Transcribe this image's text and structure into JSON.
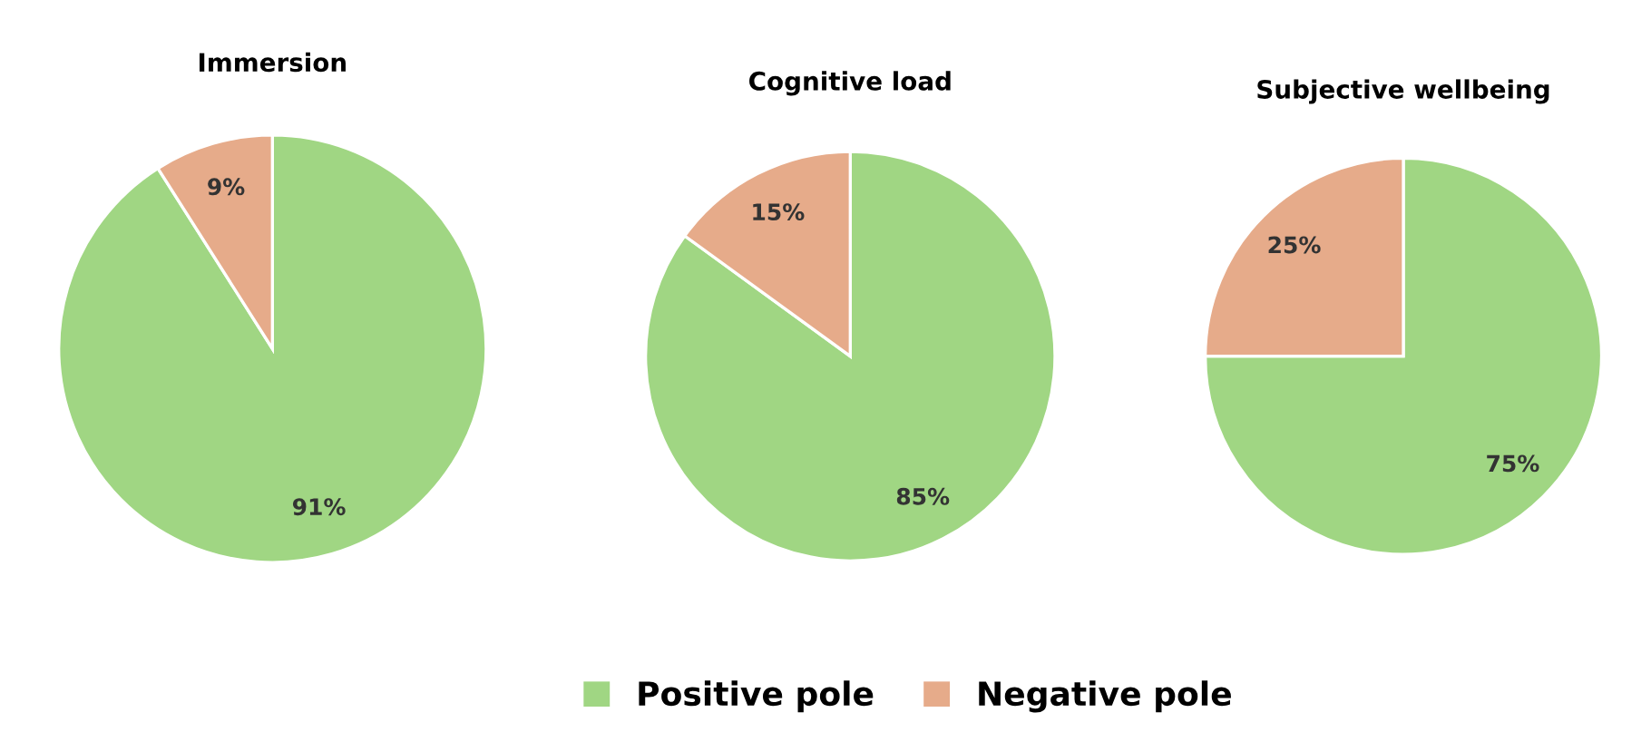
{
  "chart_data": [
    {
      "type": "pie",
      "title": "Immersion",
      "categories": [
        "Positive pole",
        "Negative pole"
      ],
      "values": [
        91,
        9
      ],
      "colors": [
        "#a0d683",
        "#e6ab8a"
      ],
      "value_labels": [
        "91%",
        "9%"
      ],
      "legend": "bottom"
    },
    {
      "type": "pie",
      "title": "Cognitive load",
      "categories": [
        null,
        null
      ],
      "values": [
        85,
        15
      ],
      "colors": [
        "#a0d683",
        "#e6ab8a"
      ],
      "value_labels": [
        "85%",
        "15%"
      ]
    },
    {
      "type": "pie",
      "title": "Subjective wellbeing",
      "categories": [
        null,
        null
      ],
      "values": [
        75,
        25
      ],
      "colors": [
        "#a0d683",
        "#e6ab8a"
      ],
      "value_labels": [
        "75%",
        "25%"
      ]
    }
  ]
}
